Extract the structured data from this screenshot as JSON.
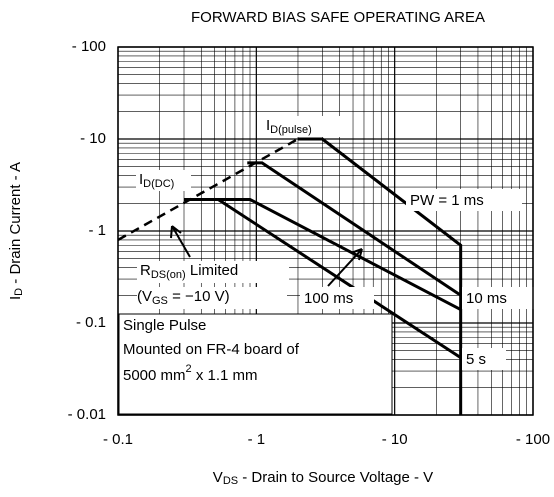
{
  "chart_data": {
    "type": "line",
    "title": "FORWARD BIAS SAFE OPERATING AREA",
    "x_label": [
      "V",
      "DS",
      " - Drain to Source Voltage - V"
    ],
    "y_label": [
      "I",
      "D",
      " - Drain Current - A"
    ],
    "xscale": "log",
    "yscale": "log",
    "grid": true,
    "xlim": [
      0.1,
      100
    ],
    "ylim": [
      0.01,
      100
    ],
    "xticks": [
      {
        "value": 0.1,
        "label": "- 0.1"
      },
      {
        "value": 1,
        "label": "- 1"
      },
      {
        "value": 10,
        "label": "- 10"
      },
      {
        "value": 100,
        "label": "- 100"
      }
    ],
    "yticks": [
      {
        "value": 0.01,
        "label": "- 0.01"
      },
      {
        "value": 0.1,
        "label": "- 0.1"
      },
      {
        "value": 1,
        "label": "- 1"
      },
      {
        "value": 10,
        "label": "- 10"
      },
      {
        "value": 100,
        "label": "- 100"
      }
    ],
    "limit_line": {
      "x": [
        0.1,
        2
      ],
      "values": [
        0.8,
        10
      ],
      "style": "dashed",
      "color": "#000000"
    },
    "series": [
      {
        "name": "PW = 1 ms",
        "color": "#000000",
        "x": [
          2,
          3,
          30,
          30
        ],
        "values": [
          10,
          10,
          0.7,
          0.01
        ]
      },
      {
        "name": "10 ms",
        "color": "#000000",
        "x": [
          0.86,
          1.1,
          30
        ],
        "values": [
          5.5,
          5.5,
          0.2
        ]
      },
      {
        "name": "100 ms",
        "color": "#000000",
        "x": [
          0.3,
          0.9,
          30
        ],
        "values": [
          2.2,
          2.2,
          0.14
        ]
      },
      {
        "name": "5 s",
        "color": "#000000",
        "x": [
          0.3,
          0.53,
          30
        ],
        "values": [
          2.2,
          2.2,
          0.042
        ]
      }
    ],
    "annotations": {
      "id_pulse": [
        "I",
        "D(pulse)"
      ],
      "id_dc": [
        "I",
        "D(DC)"
      ],
      "rds": [
        "R",
        "DS(on)",
        " Limited"
      ],
      "vgs": [
        "(V",
        "GS",
        " = −10 V)"
      ],
      "note": [
        "Single Pulse",
        "Mounted on FR-4 board of",
        "5000 mm",
        "2",
        " x 1.1 mm"
      ]
    }
  }
}
